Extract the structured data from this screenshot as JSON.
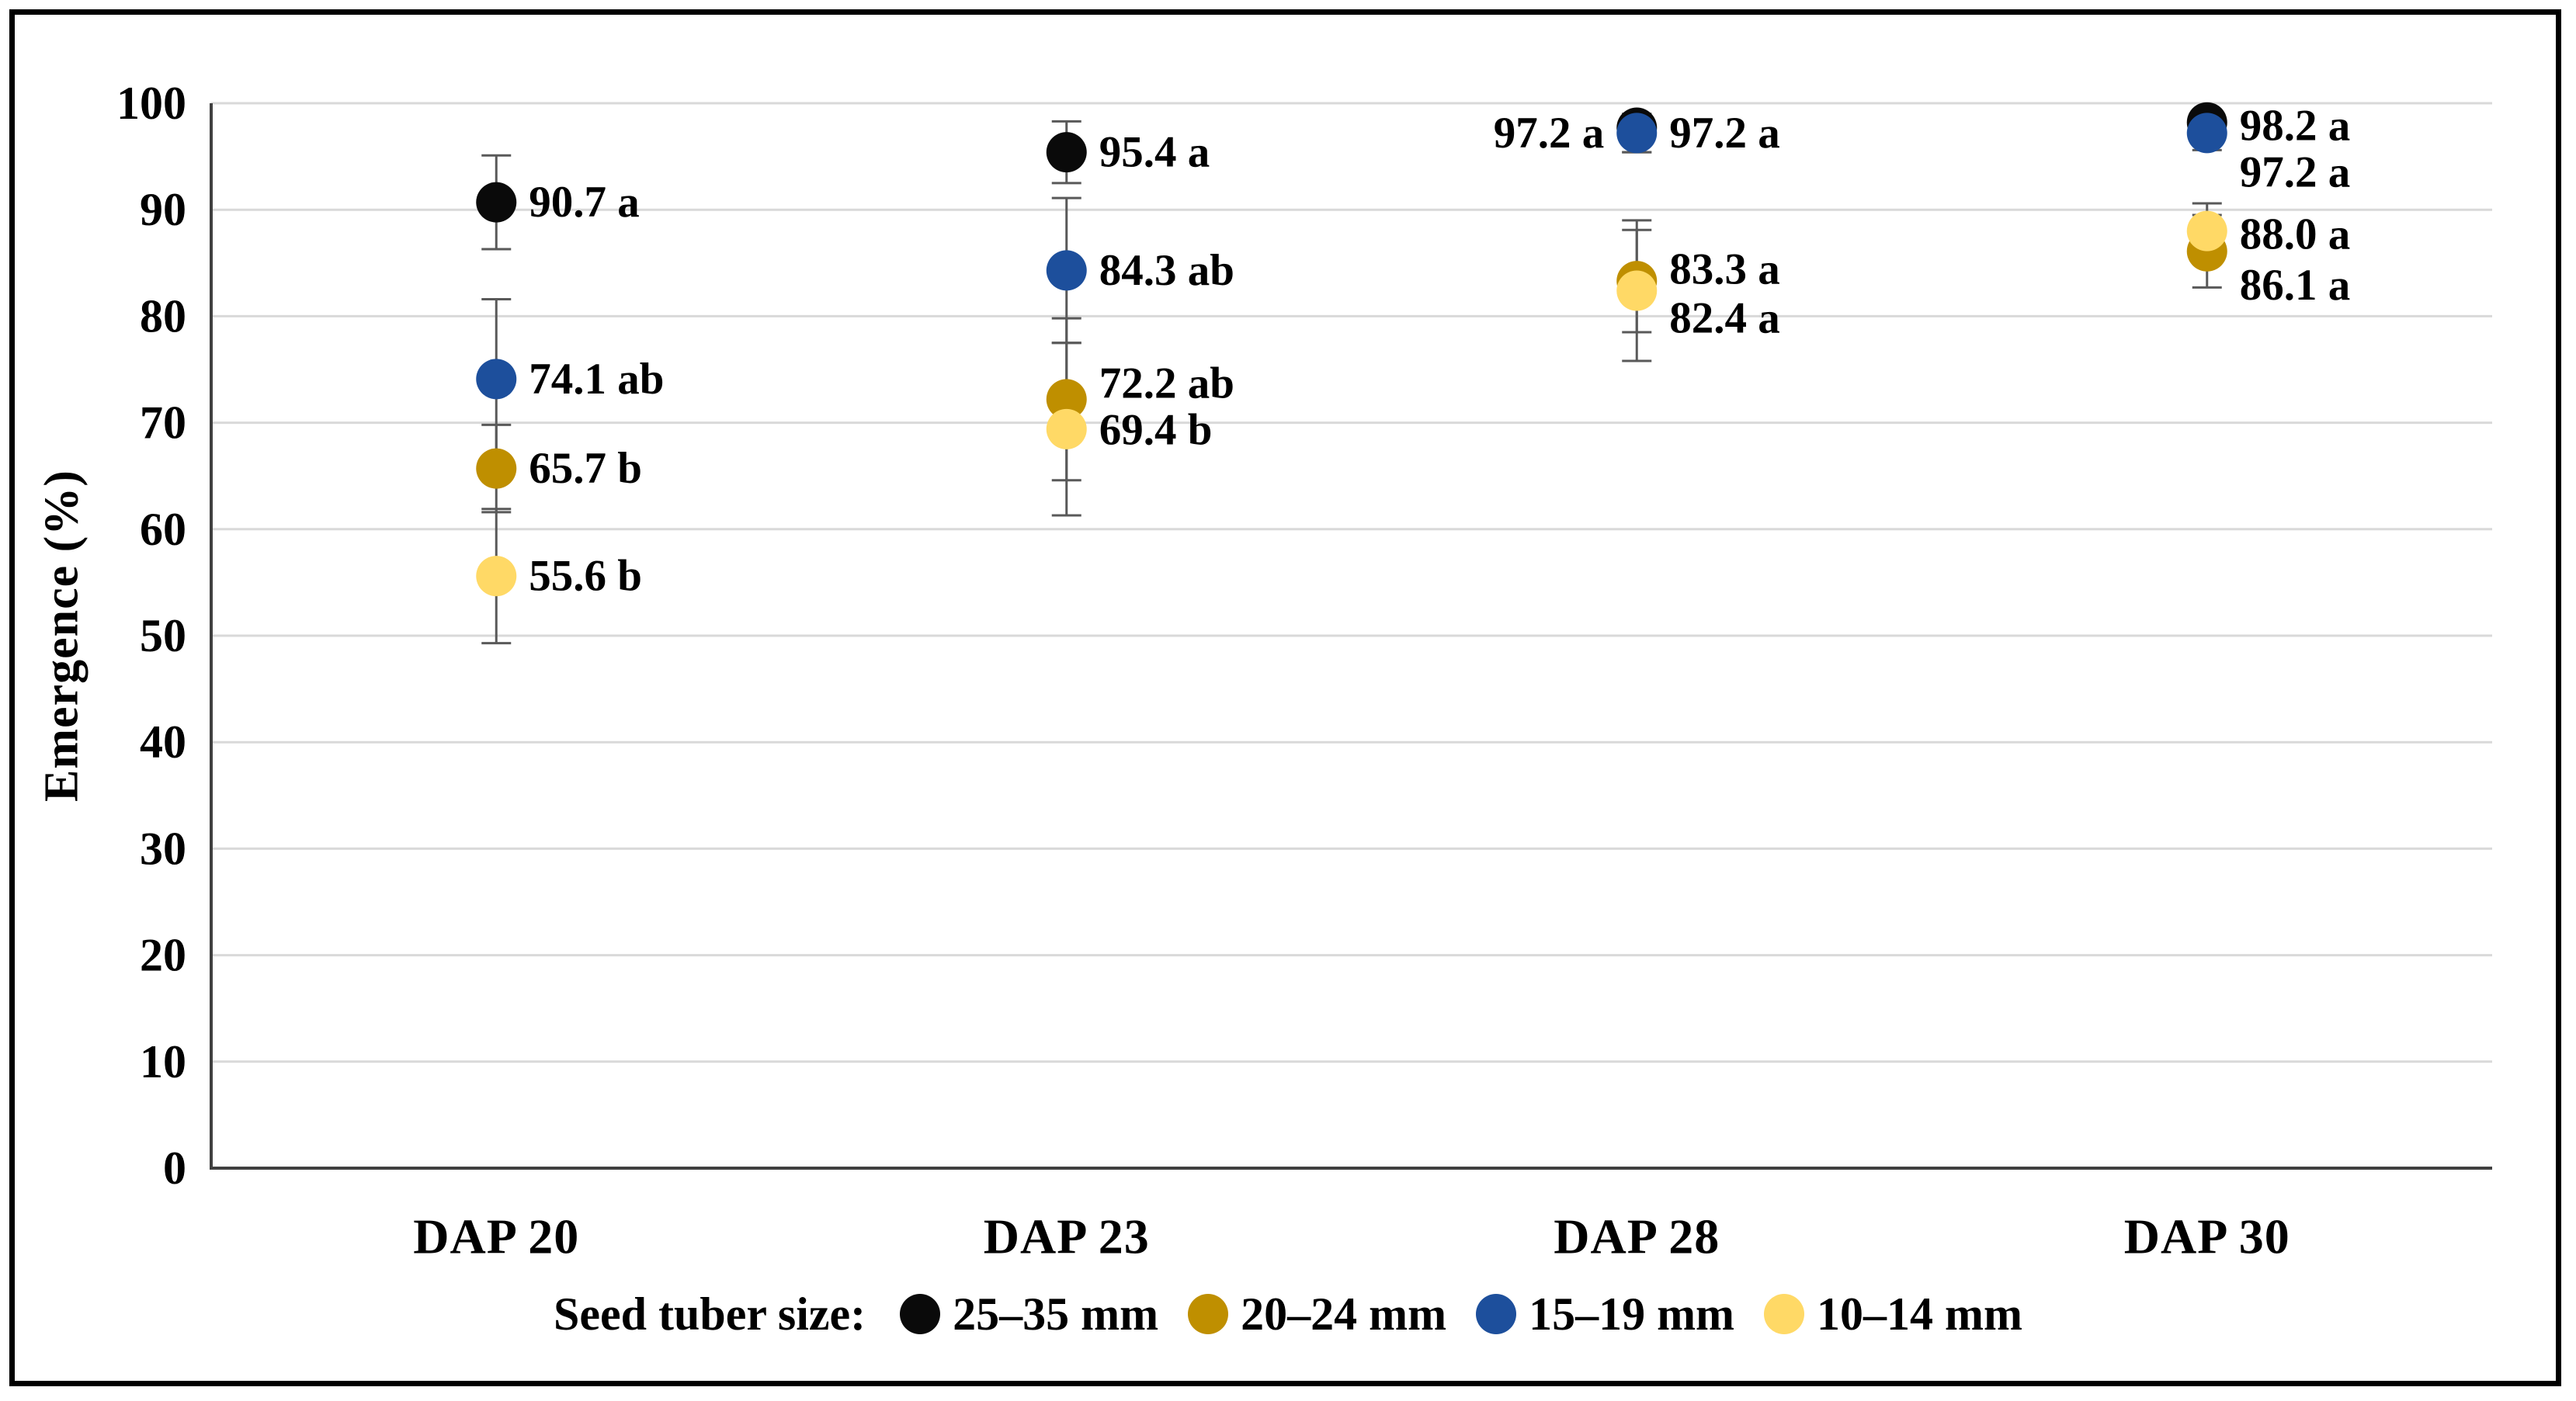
{
  "chart_data": {
    "type": "scatter",
    "title": "",
    "xlabel": "",
    "ylabel": "Emergence (%)",
    "ylim": [
      0,
      100
    ],
    "yticks": [
      0,
      10,
      20,
      30,
      40,
      50,
      60,
      70,
      80,
      90,
      100
    ],
    "categories": [
      "DAP 20",
      "DAP 23",
      "DAP 28",
      "DAP 30"
    ],
    "grid": "horizontal",
    "gridline_color": "#D9D9D9",
    "axis_color": "#404040",
    "error_bar_color": "#595959",
    "legend_position": "bottom-center",
    "legend_title": "Seed tuber size:",
    "series": [
      {
        "name": "25–35 mm",
        "color": "#0a0a0a",
        "values": [
          90.7,
          95.4,
          97.2,
          98.2
        ],
        "err": [
          4.4,
          2.9,
          1.8,
          1.2
        ],
        "draw_values": [
          90.7,
          95.4,
          97.7,
          98.2
        ],
        "labels": [
          "90.7 a",
          "95.4 a",
          "97.2 a",
          "98.2 a"
        ],
        "label_side": [
          "right",
          "right",
          "left",
          "right"
        ],
        "label_v": [
          90.7,
          95.4,
          97.2,
          97.9
        ]
      },
      {
        "name": "20–24 mm",
        "color": "#BF8F00",
        "values": [
          65.7,
          72.2,
          83.3,
          86.1
        ],
        "err": [
          4.1,
          7.6,
          4.8,
          3.4
        ],
        "labels": [
          "65.7 b",
          "72.2 ab",
          "83.3 a",
          "86.1 a"
        ],
        "label_side": [
          "right",
          "right",
          "right",
          "right"
        ],
        "label_v": [
          65.7,
          73.7,
          84.4,
          82.9
        ]
      },
      {
        "name": "15–19 mm",
        "color": "#1D4F9C",
        "values": [
          74.1,
          84.3,
          97.2,
          97.2
        ],
        "err": [
          7.5,
          6.8,
          1.8,
          1.6
        ],
        "labels": [
          "74.1 ab",
          "84.3 ab",
          "97.2 a",
          "97.2 a"
        ],
        "label_side": [
          "right",
          "right",
          "right",
          "right"
        ],
        "label_v": [
          74.1,
          84.3,
          97.2,
          93.5
        ]
      },
      {
        "name": "10–14 mm",
        "color": "#FFD966",
        "values": [
          55.6,
          69.4,
          82.4,
          88.0
        ],
        "err": [
          6.3,
          8.1,
          6.6,
          2.6
        ],
        "labels": [
          "55.6 b",
          "69.4 b",
          "82.4 a",
          "88.0 a"
        ],
        "label_side": [
          "right",
          "right",
          "right",
          "right"
        ],
        "label_v": [
          55.6,
          69.3,
          79.8,
          87.7
        ]
      }
    ]
  }
}
